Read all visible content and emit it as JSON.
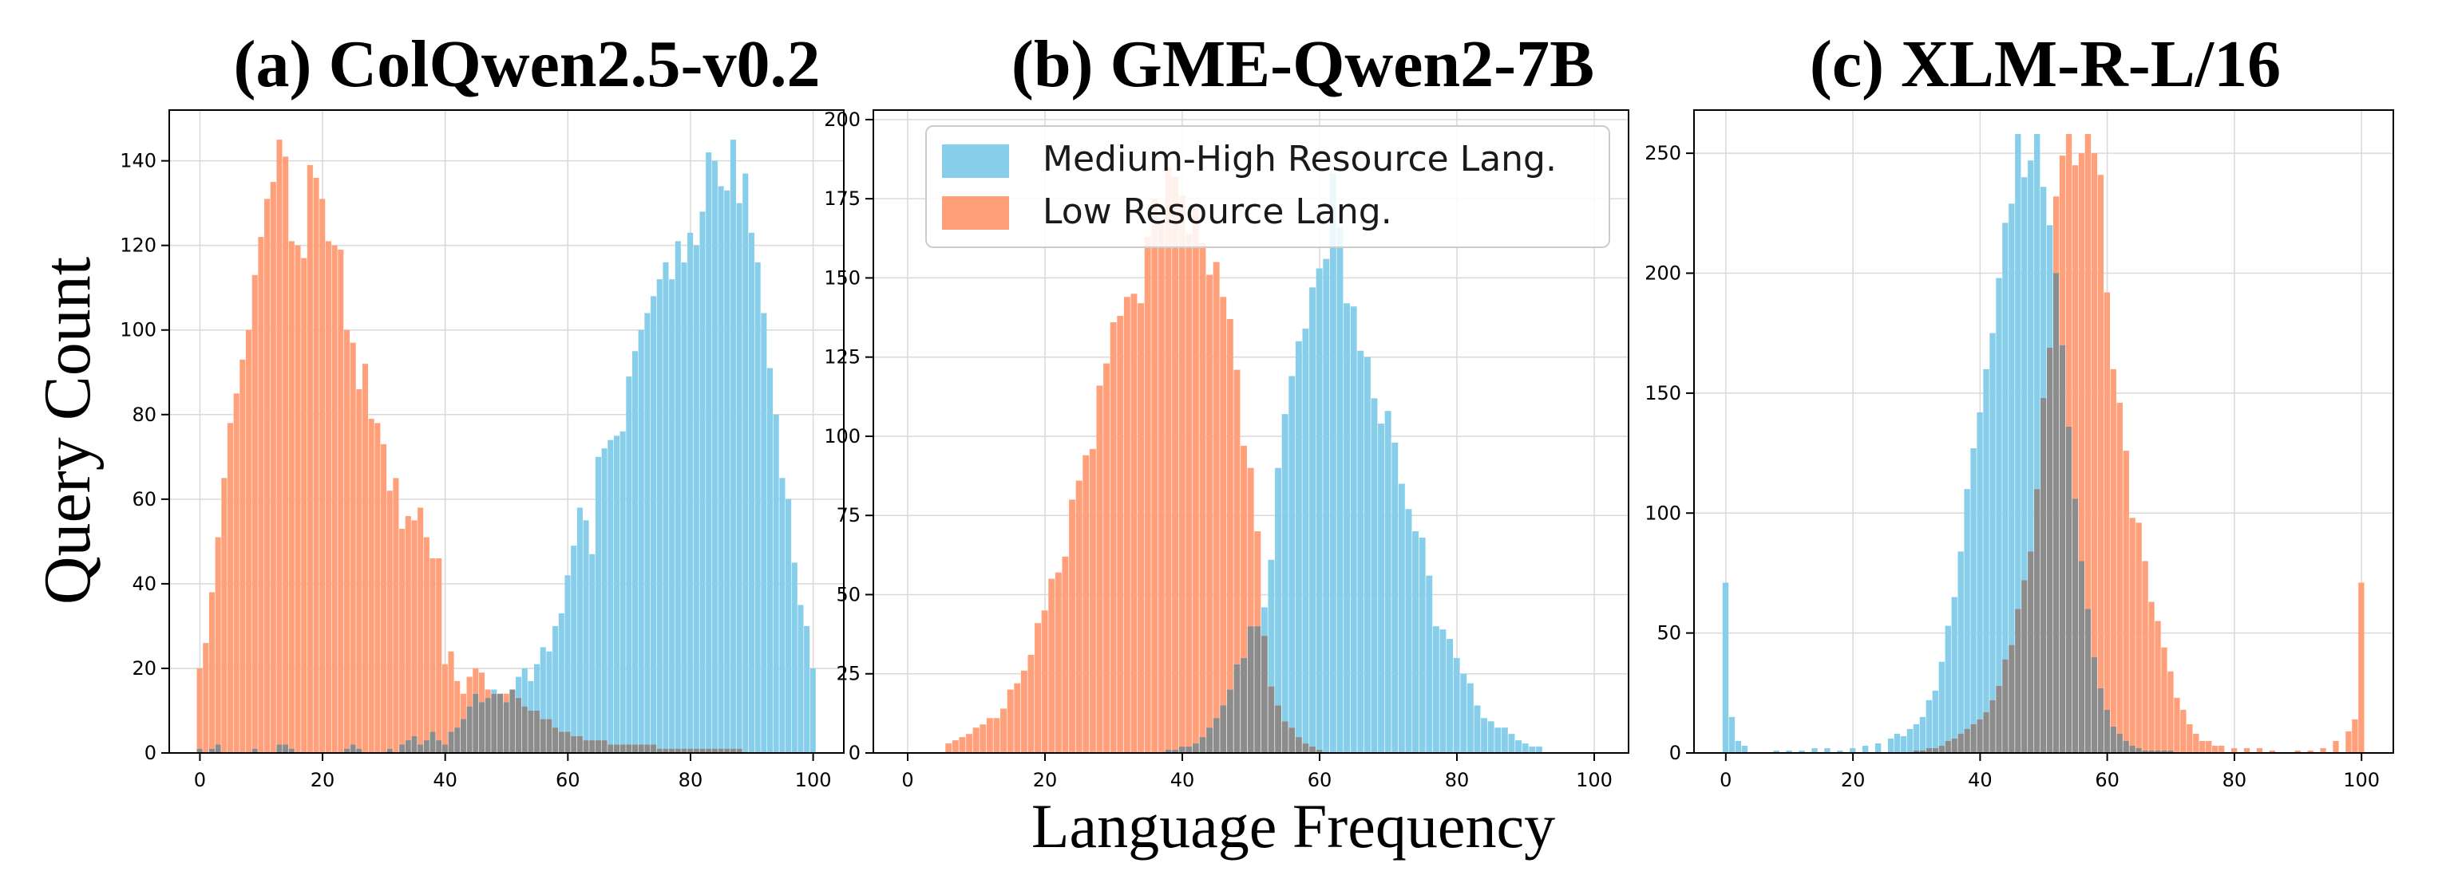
{
  "figure": {
    "ylabel": "Query Count",
    "xlabel": "Language Frequency",
    "legend": {
      "placement": "top",
      "entries": [
        {
          "label": "Medium-High Resource Lang.",
          "color": "#87CEEB"
        },
        {
          "label": "Low Resource Lang.",
          "color": "#FFA07A"
        }
      ]
    },
    "colors": {
      "medium_high": "#87CEEB",
      "low": "#FFA07A",
      "overlap": "#8c8c8c"
    }
  },
  "chart_data": [
    {
      "type": "bar",
      "title": "(a) ColQwen2.5-v0.2",
      "xlim": [
        -5,
        105
      ],
      "ylim": [
        0,
        152
      ],
      "xticks": [
        0,
        20,
        40,
        60,
        80,
        100
      ],
      "yticks": [
        0,
        20,
        40,
        60,
        80,
        100,
        120,
        140
      ],
      "grid": true,
      "bin_width": 1,
      "series": [
        {
          "name": "Medium-High Resource Lang.",
          "color": "#87CEEB",
          "x": [
            0,
            1,
            2,
            3,
            4,
            5,
            6,
            7,
            8,
            9,
            10,
            11,
            12,
            13,
            14,
            15,
            16,
            17,
            18,
            19,
            20,
            21,
            22,
            23,
            24,
            25,
            26,
            27,
            28,
            29,
            30,
            31,
            32,
            33,
            34,
            35,
            36,
            37,
            38,
            39,
            40,
            41,
            42,
            43,
            44,
            45,
            46,
            47,
            48,
            49,
            50,
            51,
            52,
            53,
            54,
            55,
            56,
            57,
            58,
            59,
            60,
            61,
            62,
            63,
            64,
            65,
            66,
            67,
            68,
            69,
            70,
            71,
            72,
            73,
            74,
            75,
            76,
            77,
            78,
            79,
            80,
            81,
            82,
            83,
            84,
            85,
            86,
            87,
            88,
            89,
            90,
            91,
            92,
            93,
            94,
            95,
            96,
            97,
            98,
            99,
            100
          ],
          "values": [
            1,
            0,
            1,
            2,
            0,
            0,
            0,
            0,
            0,
            1,
            0,
            0,
            0,
            2,
            2,
            1,
            0,
            0,
            0,
            0,
            0,
            0,
            0,
            0,
            1,
            2,
            1,
            0,
            0,
            0,
            0,
            1,
            0,
            2,
            3,
            4,
            2,
            3,
            5,
            3,
            2,
            5,
            6,
            8,
            11,
            14,
            12,
            13,
            15,
            14,
            12,
            15,
            18,
            20,
            17,
            21,
            25,
            24,
            30,
            33,
            42,
            49,
            58,
            55,
            47,
            70,
            72,
            74,
            75,
            76,
            89,
            95,
            100,
            104,
            108,
            112,
            116,
            112,
            121,
            116,
            123,
            120,
            128,
            142,
            140,
            134,
            133,
            145,
            130,
            137,
            123,
            116,
            104,
            91,
            80,
            65,
            60,
            45,
            35,
            30,
            20
          ]
        },
        {
          "name": "Low Resource Lang.",
          "color": "#FFA07A",
          "x": [
            0,
            1,
            2,
            3,
            4,
            5,
            6,
            7,
            8,
            9,
            10,
            11,
            12,
            13,
            14,
            15,
            16,
            17,
            18,
            19,
            20,
            21,
            22,
            23,
            24,
            25,
            26,
            27,
            28,
            29,
            30,
            31,
            32,
            33,
            34,
            35,
            36,
            37,
            38,
            39,
            40,
            41,
            42,
            43,
            44,
            45,
            46,
            47,
            48,
            49,
            50,
            51,
            52,
            53,
            54,
            55,
            56,
            57,
            58,
            59,
            60,
            61,
            62,
            63,
            64,
            65,
            66,
            67,
            68,
            69,
            70,
            71,
            72,
            73,
            74,
            75,
            76,
            77,
            78,
            79,
            80,
            81,
            82,
            83,
            84,
            85,
            86,
            87,
            88,
            89,
            90,
            91,
            92,
            93,
            94,
            95,
            96,
            97,
            98,
            99,
            100
          ],
          "values": [
            20,
            26,
            38,
            51,
            65,
            78,
            85,
            93,
            100,
            113,
            122,
            131,
            135,
            145,
            141,
            121,
            120,
            117,
            139,
            136,
            131,
            121,
            120,
            119,
            100,
            97,
            86,
            92,
            79,
            78,
            73,
            62,
            65,
            53,
            56,
            55,
            58,
            51,
            46,
            46,
            21,
            24,
            17,
            14,
            18,
            20,
            19,
            15,
            14,
            14,
            14,
            15,
            13,
            11,
            10,
            10,
            8,
            8,
            6,
            5,
            5,
            4,
            4,
            3,
            3,
            3,
            3,
            2,
            2,
            2,
            2,
            2,
            2,
            2,
            2,
            1,
            1,
            1,
            1,
            1,
            1,
            1,
            1,
            1,
            1,
            1,
            1,
            1,
            1,
            0,
            0,
            0,
            0,
            0,
            0,
            0,
            0,
            0,
            0,
            0,
            0
          ]
        }
      ]
    },
    {
      "type": "bar",
      "title": "(b) GME-Qwen2-7B",
      "xlim": [
        -5,
        105
      ],
      "ylim": [
        0,
        203
      ],
      "xticks": [
        0,
        20,
        40,
        60,
        80,
        100
      ],
      "yticks": [
        0,
        25,
        50,
        75,
        100,
        125,
        150,
        175,
        200
      ],
      "grid": true,
      "bin_width": 1,
      "series": [
        {
          "name": "Medium-High Resource Lang.",
          "color": "#87CEEB",
          "x": [
            38,
            39,
            40,
            41,
            42,
            43,
            44,
            45,
            46,
            47,
            48,
            49,
            50,
            51,
            52,
            53,
            54,
            55,
            56,
            57,
            58,
            59,
            60,
            61,
            62,
            63,
            64,
            65,
            66,
            67,
            68,
            69,
            70,
            71,
            72,
            73,
            74,
            75,
            76,
            77,
            78,
            79,
            80,
            81,
            82,
            83,
            84,
            85,
            86,
            87,
            88,
            89,
            90,
            91,
            92
          ],
          "values": [
            1,
            1,
            2,
            2,
            3,
            5,
            8,
            11,
            15,
            20,
            28,
            30,
            40,
            40,
            46,
            61,
            90,
            107,
            119,
            130,
            134,
            147,
            153,
            156,
            183,
            166,
            142,
            141,
            127,
            125,
            112,
            104,
            108,
            98,
            85,
            77,
            70,
            68,
            56,
            40,
            39,
            36,
            30,
            25,
            22,
            15,
            11,
            10,
            8,
            8,
            6,
            4,
            3,
            2,
            2
          ]
        },
        {
          "name": "Low Resource Lang.",
          "color": "#FFA07A",
          "x": [
            6,
            7,
            8,
            9,
            10,
            11,
            12,
            13,
            14,
            15,
            16,
            17,
            18,
            19,
            20,
            21,
            22,
            23,
            24,
            25,
            26,
            27,
            28,
            29,
            30,
            31,
            32,
            33,
            34,
            35,
            36,
            37,
            38,
            39,
            40,
            41,
            42,
            43,
            44,
            45,
            46,
            47,
            48,
            49,
            50,
            51,
            52,
            53,
            54,
            55,
            56,
            57,
            58,
            59,
            60
          ],
          "values": [
            3,
            4,
            5,
            6,
            8,
            9,
            11,
            11,
            14,
            20,
            22,
            26,
            31,
            41,
            45,
            55,
            57,
            62,
            80,
            86,
            94,
            96,
            116,
            123,
            136,
            138,
            144,
            145,
            142,
            163,
            175,
            168,
            185,
            182,
            176,
            164,
            172,
            161,
            151,
            155,
            144,
            137,
            121,
            97,
            90,
            70,
            37,
            21,
            15,
            10,
            8,
            5,
            3,
            2,
            1
          ]
        }
      ]
    },
    {
      "type": "bar",
      "title": "(c) XLM-R-L/16",
      "xlim": [
        -5,
        105
      ],
      "ylim": [
        0,
        268
      ],
      "xticks": [
        0,
        20,
        40,
        60,
        80,
        100
      ],
      "yticks": [
        0,
        50,
        100,
        150,
        200,
        250
      ],
      "grid": true,
      "bin_width": 1,
      "series": [
        {
          "name": "Medium-High Resource Lang.",
          "color": "#87CEEB",
          "x": [
            0,
            1,
            2,
            3,
            8,
            10,
            12,
            14,
            16,
            18,
            20,
            22,
            24,
            26,
            27,
            28,
            29,
            30,
            31,
            32,
            33,
            34,
            35,
            36,
            37,
            38,
            39,
            40,
            41,
            42,
            43,
            44,
            45,
            46,
            47,
            48,
            49,
            50,
            51,
            52,
            53,
            54,
            55,
            56,
            57,
            58,
            59,
            60,
            61,
            62,
            63,
            64,
            65,
            66,
            67,
            68,
            69,
            70
          ],
          "values": [
            71,
            15,
            5,
            3,
            1,
            1,
            1,
            2,
            2,
            1,
            2,
            3,
            4,
            6,
            8,
            7,
            10,
            12,
            15,
            22,
            26,
            38,
            53,
            65,
            84,
            110,
            127,
            142,
            160,
            175,
            198,
            221,
            229,
            258,
            240,
            247,
            258,
            236,
            220,
            200,
            170,
            136,
            106,
            80,
            60,
            40,
            27,
            18,
            11,
            8,
            5,
            3,
            2,
            1,
            1,
            1,
            1,
            1
          ]
        },
        {
          "name": "Low Resource Lang.",
          "color": "#FFA07A",
          "x": [
            30,
            31,
            32,
            33,
            34,
            35,
            36,
            37,
            38,
            39,
            40,
            41,
            42,
            43,
            44,
            45,
            46,
            47,
            48,
            49,
            50,
            51,
            52,
            53,
            54,
            55,
            56,
            57,
            58,
            59,
            60,
            61,
            62,
            63,
            64,
            65,
            66,
            67,
            68,
            69,
            70,
            71,
            72,
            73,
            74,
            75,
            76,
            77,
            78,
            80,
            82,
            84,
            86,
            90,
            92,
            94,
            96,
            98,
            99,
            100
          ],
          "values": [
            1,
            1,
            2,
            2,
            3,
            5,
            6,
            8,
            10,
            12,
            14,
            17,
            22,
            28,
            39,
            45,
            60,
            72,
            84,
            110,
            148,
            169,
            232,
            249,
            258,
            245,
            250,
            258,
            250,
            241,
            192,
            160,
            146,
            126,
            98,
            96,
            80,
            63,
            55,
            44,
            34,
            23,
            18,
            12,
            8,
            5,
            5,
            3,
            3,
            2,
            2,
            2,
            1,
            1,
            1,
            2,
            5,
            9,
            14,
            71
          ]
        }
      ]
    }
  ]
}
